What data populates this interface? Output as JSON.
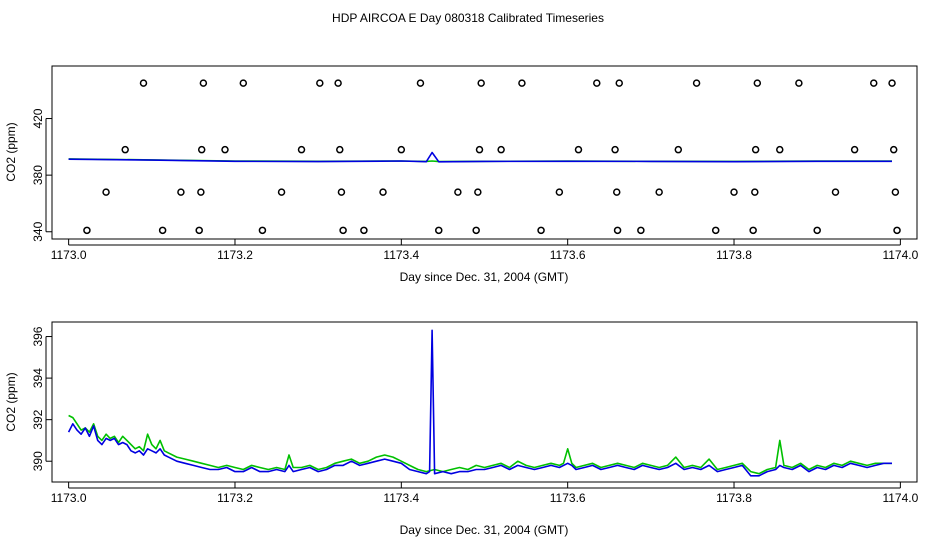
{
  "title": "HDP AIRCOA E  Day 080318  Calibrated Timeseries",
  "colors": {
    "series_green": "#00c000",
    "series_blue": "#0000e0",
    "markers": "#000000"
  },
  "chart_data": [
    {
      "type": "line",
      "xlabel": "Day since Dec. 31, 2004 (GMT)",
      "ylabel": "CO2 (ppm)",
      "xlim": [
        1172.98,
        1174.02
      ],
      "ylim": [
        337,
        455
      ],
      "xticks": [
        "1173.0",
        "1173.2",
        "1173.4",
        "1173.6",
        "1173.8",
        "1174.0"
      ],
      "yticks": [
        "340",
        "380",
        "420"
      ],
      "marker_points": {
        "x": [
          1173.022,
          1173.045,
          1173.068,
          1173.09,
          1173.113,
          1173.135,
          1173.157,
          1173.159,
          1173.16,
          1173.162,
          1173.188,
          1173.21,
          1173.233,
          1173.256,
          1173.28,
          1173.302,
          1173.324,
          1173.326,
          1173.328,
          1173.33,
          1173.355,
          1173.378,
          1173.4,
          1173.423,
          1173.445,
          1173.468,
          1173.49,
          1173.492,
          1173.494,
          1173.496,
          1173.52,
          1173.545,
          1173.568,
          1173.59,
          1173.613,
          1173.635,
          1173.657,
          1173.659,
          1173.66,
          1173.662,
          1173.688,
          1173.71,
          1173.733,
          1173.755,
          1173.778,
          1173.8,
          1173.823,
          1173.825,
          1173.826,
          1173.828,
          1173.855,
          1173.878,
          1173.9,
          1173.922,
          1173.945,
          1173.968,
          1173.99,
          1173.992,
          1173.994,
          1173.996
        ],
        "y": [
          341,
          368,
          398,
          445,
          341,
          368,
          341,
          368,
          398,
          445,
          398,
          445,
          341,
          368,
          398,
          445,
          445,
          398,
          368,
          341,
          341,
          368,
          398,
          445,
          341,
          368,
          341,
          368,
          398,
          445,
          398,
          445,
          341,
          368,
          398,
          445,
          398,
          368,
          341,
          445,
          341,
          368,
          398,
          445,
          341,
          368,
          341,
          368,
          398,
          445,
          398,
          445,
          341,
          368,
          398,
          445,
          445,
          398,
          368,
          341
        ]
      },
      "series": [
        {
          "color": "green",
          "x": [
            1173.0,
            1173.1,
            1173.2,
            1173.3,
            1173.4,
            1173.43,
            1173.437,
            1173.445,
            1173.5,
            1173.6,
            1173.7,
            1173.8,
            1173.9,
            1173.99
          ],
          "y": [
            391.5,
            390.8,
            390.0,
            389.8,
            390.0,
            389.7,
            390.0,
            389.6,
            389.8,
            389.9,
            389.8,
            389.7,
            389.9,
            389.9
          ]
        },
        {
          "color": "blue",
          "x": [
            1173.0,
            1173.1,
            1173.2,
            1173.3,
            1173.4,
            1173.43,
            1173.437,
            1173.445,
            1173.5,
            1173.6,
            1173.7,
            1173.8,
            1173.9,
            1173.99
          ],
          "y": [
            391.3,
            390.6,
            389.8,
            389.6,
            390.0,
            389.5,
            396.0,
            389.4,
            389.7,
            389.8,
            389.7,
            389.5,
            389.8,
            389.8
          ]
        }
      ]
    },
    {
      "type": "line",
      "xlabel": "Day since Dec. 31, 2004 (GMT)",
      "ylabel": "CO2 (ppm)",
      "xlim": [
        1172.98,
        1174.02
      ],
      "ylim": [
        389.0,
        396.7
      ],
      "xticks": [
        "1173.0",
        "1173.2",
        "1173.4",
        "1173.6",
        "1173.8",
        "1174.0"
      ],
      "yticks": [
        "390",
        "392",
        "394",
        "396"
      ],
      "series": [
        {
          "color": "green",
          "x": [
            1173.0,
            1173.005,
            1173.01,
            1173.015,
            1173.02,
            1173.025,
            1173.03,
            1173.035,
            1173.04,
            1173.045,
            1173.05,
            1173.055,
            1173.06,
            1173.065,
            1173.07,
            1173.075,
            1173.08,
            1173.085,
            1173.09,
            1173.095,
            1173.1,
            1173.105,
            1173.11,
            1173.115,
            1173.12,
            1173.13,
            1173.14,
            1173.15,
            1173.16,
            1173.17,
            1173.18,
            1173.19,
            1173.2,
            1173.21,
            1173.22,
            1173.23,
            1173.24,
            1173.25,
            1173.26,
            1173.265,
            1173.27,
            1173.28,
            1173.29,
            1173.3,
            1173.31,
            1173.32,
            1173.33,
            1173.34,
            1173.35,
            1173.36,
            1173.37,
            1173.38,
            1173.39,
            1173.4,
            1173.41,
            1173.42,
            1173.43,
            1173.44,
            1173.45,
            1173.46,
            1173.47,
            1173.48,
            1173.49,
            1173.5,
            1173.51,
            1173.52,
            1173.53,
            1173.54,
            1173.55,
            1173.56,
            1173.57,
            1173.58,
            1173.59,
            1173.595,
            1173.6,
            1173.605,
            1173.61,
            1173.62,
            1173.63,
            1173.64,
            1173.65,
            1173.66,
            1173.67,
            1173.68,
            1173.69,
            1173.7,
            1173.71,
            1173.72,
            1173.73,
            1173.74,
            1173.75,
            1173.76,
            1173.77,
            1173.78,
            1173.79,
            1173.8,
            1173.81,
            1173.82,
            1173.83,
            1173.84,
            1173.85,
            1173.855,
            1173.86,
            1173.87,
            1173.88,
            1173.89,
            1173.9,
            1173.91,
            1173.92,
            1173.93,
            1173.94,
            1173.95,
            1173.96,
            1173.97,
            1173.98,
            1173.99
          ],
          "y": [
            392.2,
            392.1,
            391.8,
            391.5,
            391.6,
            391.4,
            391.8,
            391.2,
            391.0,
            391.3,
            391.1,
            391.2,
            390.9,
            391.2,
            391.0,
            390.8,
            390.6,
            390.7,
            390.5,
            391.3,
            390.8,
            390.6,
            391.0,
            390.5,
            390.4,
            390.2,
            390.1,
            390.0,
            389.9,
            389.8,
            389.7,
            389.8,
            389.7,
            389.6,
            389.8,
            389.7,
            389.6,
            389.7,
            389.6,
            390.3,
            389.7,
            389.7,
            389.8,
            389.6,
            389.7,
            389.9,
            390.0,
            390.1,
            389.9,
            390.0,
            390.2,
            390.3,
            390.2,
            390.0,
            389.8,
            389.6,
            389.5,
            389.6,
            389.5,
            389.6,
            389.7,
            389.6,
            389.8,
            389.7,
            389.8,
            389.9,
            389.7,
            390.0,
            389.8,
            389.7,
            389.8,
            389.9,
            389.8,
            389.9,
            390.6,
            389.9,
            389.7,
            389.8,
            389.9,
            389.7,
            389.8,
            389.9,
            389.8,
            389.7,
            389.9,
            389.8,
            389.7,
            389.8,
            390.2,
            389.7,
            389.8,
            389.7,
            390.1,
            389.6,
            389.7,
            389.8,
            389.9,
            389.5,
            389.4,
            389.6,
            389.7,
            391.0,
            389.8,
            389.7,
            389.9,
            389.6,
            389.8,
            389.7,
            389.9,
            389.8,
            390.0,
            389.9,
            389.8,
            389.9,
            389.9,
            389.9
          ]
        },
        {
          "color": "blue",
          "x": [
            1173.0,
            1173.005,
            1173.01,
            1173.015,
            1173.02,
            1173.025,
            1173.03,
            1173.035,
            1173.04,
            1173.045,
            1173.05,
            1173.055,
            1173.06,
            1173.065,
            1173.07,
            1173.075,
            1173.08,
            1173.085,
            1173.09,
            1173.095,
            1173.1,
            1173.105,
            1173.11,
            1173.115,
            1173.12,
            1173.13,
            1173.14,
            1173.15,
            1173.16,
            1173.17,
            1173.18,
            1173.19,
            1173.2,
            1173.21,
            1173.22,
            1173.23,
            1173.24,
            1173.25,
            1173.26,
            1173.265,
            1173.27,
            1173.28,
            1173.29,
            1173.3,
            1173.31,
            1173.32,
            1173.33,
            1173.34,
            1173.35,
            1173.36,
            1173.37,
            1173.38,
            1173.39,
            1173.4,
            1173.41,
            1173.42,
            1173.43,
            1173.434,
            1173.437,
            1173.44,
            1173.45,
            1173.46,
            1173.47,
            1173.48,
            1173.49,
            1173.5,
            1173.51,
            1173.52,
            1173.53,
            1173.54,
            1173.55,
            1173.56,
            1173.57,
            1173.58,
            1173.59,
            1173.595,
            1173.6,
            1173.605,
            1173.61,
            1173.62,
            1173.63,
            1173.64,
            1173.65,
            1173.66,
            1173.67,
            1173.68,
            1173.69,
            1173.7,
            1173.71,
            1173.72,
            1173.73,
            1173.74,
            1173.75,
            1173.76,
            1173.77,
            1173.78,
            1173.79,
            1173.8,
            1173.81,
            1173.82,
            1173.83,
            1173.84,
            1173.85,
            1173.855,
            1173.86,
            1173.87,
            1173.88,
            1173.89,
            1173.9,
            1173.91,
            1173.92,
            1173.93,
            1173.94,
            1173.95,
            1173.96,
            1173.97,
            1173.98,
            1173.99
          ],
          "y": [
            391.4,
            391.8,
            391.5,
            391.3,
            391.6,
            391.2,
            391.7,
            391.0,
            390.8,
            391.1,
            391.0,
            391.1,
            390.8,
            390.9,
            390.8,
            390.5,
            390.4,
            390.5,
            390.3,
            390.6,
            390.5,
            390.4,
            390.6,
            390.3,
            390.2,
            390.0,
            389.9,
            389.8,
            389.7,
            389.6,
            389.6,
            389.7,
            389.5,
            389.5,
            389.7,
            389.5,
            389.5,
            389.6,
            389.5,
            389.8,
            389.5,
            389.6,
            389.7,
            389.5,
            389.6,
            389.8,
            389.8,
            390.0,
            389.8,
            389.9,
            390.0,
            390.1,
            390.0,
            389.9,
            389.6,
            389.5,
            389.4,
            389.5,
            396.3,
            389.4,
            389.5,
            389.4,
            389.5,
            389.5,
            389.6,
            389.6,
            389.7,
            389.8,
            389.6,
            389.8,
            389.7,
            389.6,
            389.7,
            389.8,
            389.7,
            389.8,
            389.9,
            389.8,
            389.6,
            389.7,
            389.8,
            389.6,
            389.7,
            389.8,
            389.7,
            389.6,
            389.8,
            389.7,
            389.6,
            389.7,
            389.9,
            389.6,
            389.7,
            389.6,
            389.8,
            389.5,
            389.6,
            389.7,
            389.8,
            389.3,
            389.3,
            389.5,
            389.6,
            389.8,
            389.7,
            389.6,
            389.8,
            389.5,
            389.7,
            389.6,
            389.8,
            389.7,
            389.9,
            389.8,
            389.7,
            389.8,
            389.9,
            389.9
          ]
        }
      ]
    }
  ]
}
